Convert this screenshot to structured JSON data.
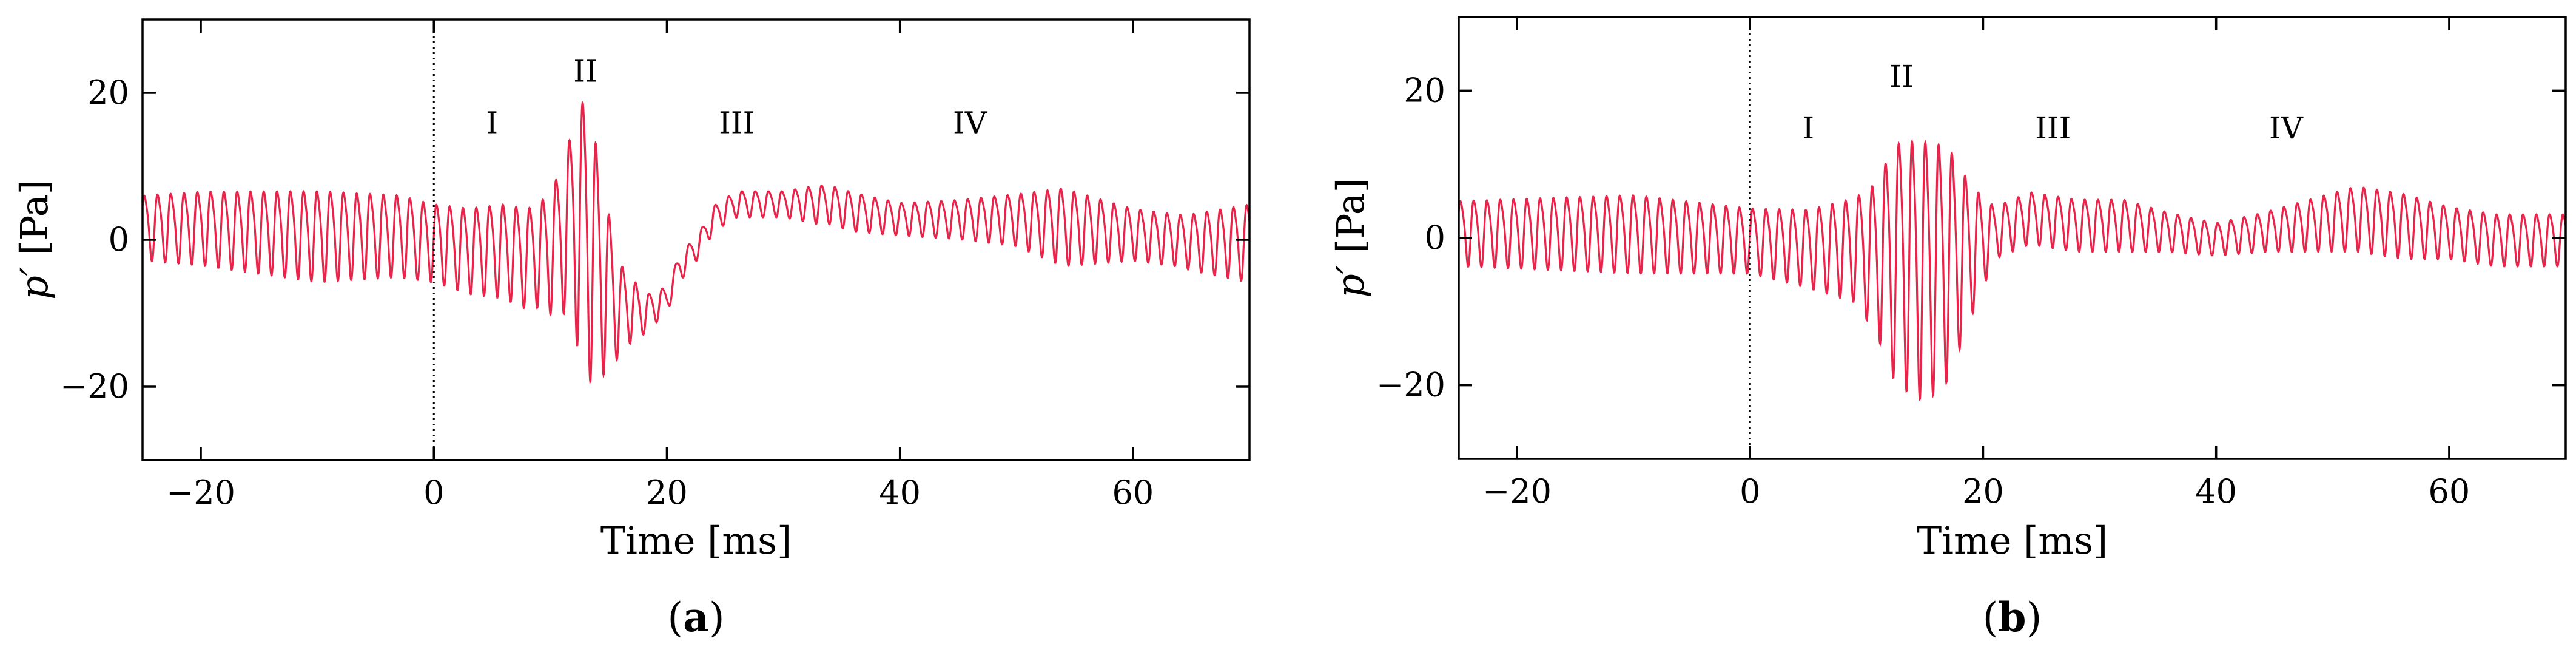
{
  "chart_data": [
    {
      "type": "line",
      "panel_label": "a",
      "xlabel": "Time [ms]",
      "ylabel_main": "p′",
      "ylabel_unit": "[Pa]",
      "xlim": [
        -25,
        70
      ],
      "ylim": [
        -30,
        30
      ],
      "xticks": [
        -20,
        0,
        20,
        40,
        60
      ],
      "yticks": [
        -20,
        0,
        20
      ],
      "xtick_labels": [
        "−20",
        "0",
        "20",
        "40",
        "60"
      ],
      "ytick_labels": [
        "−20",
        "0",
        "20"
      ],
      "vline_x": 0,
      "line_color": "#e8244a",
      "region_labels": [
        {
          "text": "I",
          "x": 5,
          "y": 16
        },
        {
          "text": "II",
          "x": 13,
          "y": 23
        },
        {
          "text": "III",
          "x": 26,
          "y": 16
        },
        {
          "text": "IV",
          "x": 46,
          "y": 16
        }
      ],
      "signal_points": [
        [
          -25,
          2
        ],
        [
          -20,
          2
        ],
        [
          -10,
          1
        ],
        [
          -3,
          1
        ],
        [
          0,
          0
        ],
        [
          3,
          -1
        ],
        [
          6,
          -1
        ],
        [
          8,
          -2
        ],
        [
          10,
          -1
        ],
        [
          11,
          1
        ],
        [
          12,
          3
        ],
        [
          13,
          2
        ],
        [
          14,
          -2
        ],
        [
          15,
          -6
        ],
        [
          16,
          -9
        ],
        [
          17,
          -9
        ],
        [
          18,
          -10
        ],
        [
          19,
          -9
        ],
        [
          20,
          -8
        ],
        [
          21,
          -4
        ],
        [
          22,
          -2
        ],
        [
          23,
          0
        ],
        [
          24,
          3
        ],
        [
          26,
          5
        ],
        [
          28,
          5
        ],
        [
          30,
          5
        ],
        [
          32,
          5
        ],
        [
          34,
          5
        ],
        [
          36,
          4
        ],
        [
          40,
          3
        ],
        [
          45,
          3
        ],
        [
          50,
          3
        ],
        [
          55,
          2
        ],
        [
          60,
          1
        ],
        [
          65,
          0
        ],
        [
          70,
          0
        ]
      ],
      "amp_points": [
        [
          -25,
          5
        ],
        [
          -10,
          7
        ],
        [
          0,
          6
        ],
        [
          5,
          7
        ],
        [
          9,
          8
        ],
        [
          11,
          11
        ],
        [
          12,
          16
        ],
        [
          13,
          22
        ],
        [
          14,
          18
        ],
        [
          15,
          12
        ],
        [
          16,
          7
        ],
        [
          18,
          3
        ],
        [
          20,
          2
        ],
        [
          23,
          2
        ],
        [
          26,
          2
        ],
        [
          30,
          2
        ],
        [
          33,
          3
        ],
        [
          36,
          3
        ],
        [
          40,
          2.5
        ],
        [
          45,
          3
        ],
        [
          50,
          4
        ],
        [
          54,
          6
        ],
        [
          57,
          5
        ],
        [
          60,
          4
        ],
        [
          64,
          4
        ],
        [
          67,
          5
        ],
        [
          70,
          6
        ]
      ],
      "period_ms": 1.14
    },
    {
      "type": "line",
      "panel_label": "b",
      "xlabel": "Time [ms]",
      "ylabel_main": "p′",
      "ylabel_unit": "[Pa]",
      "xlim": [
        -25,
        70
      ],
      "ylim": [
        -30,
        30
      ],
      "xticks": [
        -20,
        0,
        20,
        40,
        60
      ],
      "yticks": [
        -20,
        0,
        20
      ],
      "xtick_labels": [
        "−20",
        "0",
        "20",
        "40",
        "60"
      ],
      "ytick_labels": [
        "−20",
        "0",
        "20"
      ],
      "vline_x": 0,
      "line_color": "#e8244a",
      "region_labels": [
        {
          "text": "I",
          "x": 5,
          "y": 15
        },
        {
          "text": "II",
          "x": 13,
          "y": 22
        },
        {
          "text": "III",
          "x": 26,
          "y": 15
        },
        {
          "text": "IV",
          "x": 46,
          "y": 15
        }
      ],
      "signal_points": [
        [
          -25,
          1
        ],
        [
          -10,
          1
        ],
        [
          0,
          0
        ],
        [
          5,
          -1
        ],
        [
          9,
          -1
        ],
        [
          11,
          -2
        ],
        [
          13,
          -2
        ],
        [
          15,
          -3
        ],
        [
          17,
          -2
        ],
        [
          19,
          -1
        ],
        [
          21,
          1
        ],
        [
          24,
          3
        ],
        [
          28,
          2
        ],
        [
          32,
          2
        ],
        [
          36,
          1
        ],
        [
          40,
          0
        ],
        [
          44,
          1
        ],
        [
          48,
          2
        ],
        [
          52,
          3
        ],
        [
          56,
          2
        ],
        [
          60,
          1
        ],
        [
          64,
          0
        ],
        [
          70,
          0
        ]
      ],
      "amp_points": [
        [
          -25,
          5
        ],
        [
          -10,
          6
        ],
        [
          0,
          5
        ],
        [
          5,
          6
        ],
        [
          9,
          8
        ],
        [
          11,
          12
        ],
        [
          12,
          17
        ],
        [
          13,
          19
        ],
        [
          15,
          20
        ],
        [
          17,
          18
        ],
        [
          19,
          10
        ],
        [
          21,
          4
        ],
        [
          24,
          4
        ],
        [
          28,
          4
        ],
        [
          32,
          4
        ],
        [
          36,
          3
        ],
        [
          40,
          2.5
        ],
        [
          44,
          3
        ],
        [
          48,
          4
        ],
        [
          52,
          5
        ],
        [
          56,
          5
        ],
        [
          60,
          4
        ],
        [
          64,
          4
        ],
        [
          70,
          4
        ]
      ],
      "period_ms": 1.14
    }
  ]
}
